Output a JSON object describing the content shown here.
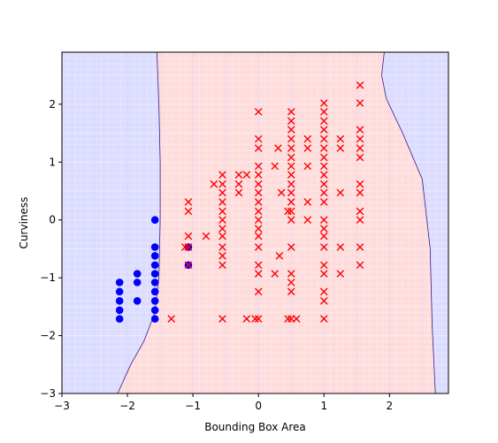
{
  "chart_data": {
    "type": "scatter",
    "title": "",
    "xlabel": "Bounding Box Area",
    "ylabel": "Curviness",
    "xlim": [
      -3,
      2.9
    ],
    "ylim": [
      -3,
      2.9
    ],
    "x_ticks": [
      -3,
      -2,
      -1,
      0,
      1,
      2
    ],
    "y_ticks": [
      -3,
      -2,
      -1,
      0,
      1,
      2
    ],
    "x_tick_labels": [
      "−3",
      "−2",
      "−1",
      "0",
      "1",
      "2"
    ],
    "y_tick_labels": [
      "−3",
      "−2",
      "−1",
      "0",
      "1",
      "2"
    ],
    "grid": false,
    "background": "decision regions (blue = class 0, red = class 1) with mesh grid lines",
    "colors": {
      "class0_region": "#dcdcff",
      "class1_region": "#ffdcdc",
      "class0_marker": "#0000ff",
      "class1_marker": "#ff0000",
      "boundary": "#3a1d8a"
    },
    "decision_boundary": {
      "left": [
        [
          -1.55,
          2.9
        ],
        [
          -1.52,
          2.0
        ],
        [
          -1.5,
          1.0
        ],
        [
          -1.5,
          0.0
        ],
        [
          -1.52,
          -1.0
        ],
        [
          -1.58,
          -1.6
        ],
        [
          -1.75,
          -2.1
        ],
        [
          -1.95,
          -2.5
        ],
        [
          -2.15,
          -3.0
        ]
      ],
      "right": [
        [
          1.92,
          2.9
        ],
        [
          1.88,
          2.5
        ],
        [
          1.95,
          2.1
        ],
        [
          2.2,
          1.5
        ],
        [
          2.5,
          0.7
        ],
        [
          2.62,
          -0.5
        ],
        [
          2.65,
          -1.8
        ],
        [
          2.7,
          -3.0
        ]
      ]
    },
    "series": [
      {
        "marker": "o",
        "color": "#0000ff",
        "points": [
          [
            -2.12,
            -1.08
          ],
          [
            -2.12,
            -1.24
          ],
          [
            -2.12,
            -1.4
          ],
          [
            -2.12,
            -1.56
          ],
          [
            -2.12,
            -1.71
          ],
          [
            -1.85,
            -0.93
          ],
          [
            -1.85,
            -1.08
          ],
          [
            -1.85,
            -1.4
          ],
          [
            -1.58,
            0.0
          ],
          [
            -1.58,
            -0.47
          ],
          [
            -1.58,
            -0.62
          ],
          [
            -1.58,
            -0.78
          ],
          [
            -1.58,
            -0.93
          ],
          [
            -1.58,
            -1.08
          ],
          [
            -1.58,
            -1.24
          ],
          [
            -1.58,
            -1.4
          ],
          [
            -1.58,
            -1.56
          ],
          [
            -1.58,
            -1.71
          ],
          [
            -1.07,
            -0.47
          ],
          [
            -1.07,
            -0.78
          ]
        ]
      },
      {
        "marker": "x",
        "color": "#ff0000",
        "points": [
          [
            -1.33,
            -1.71
          ],
          [
            -1.12,
            -0.47
          ],
          [
            -1.07,
            0.31
          ],
          [
            -1.07,
            0.15
          ],
          [
            -1.07,
            -0.28
          ],
          [
            -1.07,
            -0.47
          ],
          [
            -1.07,
            -0.78
          ],
          [
            -0.8,
            -0.28
          ],
          [
            -0.68,
            0.62
          ],
          [
            -0.55,
            0.78
          ],
          [
            -0.55,
            0.62
          ],
          [
            -0.55,
            0.47
          ],
          [
            -0.55,
            0.31
          ],
          [
            -0.55,
            0.15
          ],
          [
            -0.55,
            0.0
          ],
          [
            -0.55,
            -0.15
          ],
          [
            -0.55,
            -0.28
          ],
          [
            -0.55,
            -0.47
          ],
          [
            -0.55,
            -0.62
          ],
          [
            -0.55,
            -0.78
          ],
          [
            -0.55,
            -1.71
          ],
          [
            -0.3,
            0.78
          ],
          [
            -0.3,
            0.62
          ],
          [
            -0.3,
            0.47
          ],
          [
            -0.18,
            0.78
          ],
          [
            -0.18,
            -1.71
          ],
          [
            0.0,
            1.87
          ],
          [
            0.0,
            1.4
          ],
          [
            0.0,
            1.24
          ],
          [
            0.0,
            0.93
          ],
          [
            0.0,
            0.78
          ],
          [
            0.0,
            0.62
          ],
          [
            0.0,
            0.47
          ],
          [
            0.0,
            0.31
          ],
          [
            0.0,
            0.15
          ],
          [
            0.0,
            0.0
          ],
          [
            0.0,
            -0.15
          ],
          [
            0.0,
            -0.28
          ],
          [
            0.0,
            -0.47
          ],
          [
            0.0,
            -0.78
          ],
          [
            0.0,
            -0.93
          ],
          [
            0.0,
            -1.24
          ],
          [
            0.0,
            -1.71
          ],
          [
            -0.05,
            -1.71
          ],
          [
            0.25,
            0.93
          ],
          [
            0.25,
            -0.93
          ],
          [
            0.3,
            1.24
          ],
          [
            0.35,
            0.47
          ],
          [
            0.32,
            -0.62
          ],
          [
            0.5,
            1.87
          ],
          [
            0.5,
            1.71
          ],
          [
            0.5,
            1.56
          ],
          [
            0.5,
            1.4
          ],
          [
            0.5,
            1.24
          ],
          [
            0.5,
            1.08
          ],
          [
            0.5,
            0.93
          ],
          [
            0.5,
            0.78
          ],
          [
            0.5,
            0.62
          ],
          [
            0.5,
            0.47
          ],
          [
            0.5,
            0.31
          ],
          [
            0.5,
            0.15
          ],
          [
            0.5,
            0.0
          ],
          [
            0.5,
            -0.47
          ],
          [
            0.5,
            -0.93
          ],
          [
            0.5,
            -1.08
          ],
          [
            0.5,
            -1.24
          ],
          [
            0.5,
            -1.71
          ],
          [
            0.45,
            0.15
          ],
          [
            0.45,
            -1.71
          ],
          [
            0.58,
            -1.71
          ],
          [
            0.75,
            1.4
          ],
          [
            0.75,
            1.24
          ],
          [
            0.75,
            0.93
          ],
          [
            0.75,
            0.31
          ],
          [
            0.75,
            0.0
          ],
          [
            1.0,
            2.02
          ],
          [
            1.0,
            1.87
          ],
          [
            1.0,
            1.71
          ],
          [
            1.0,
            1.56
          ],
          [
            1.0,
            1.4
          ],
          [
            1.0,
            1.24
          ],
          [
            1.0,
            1.08
          ],
          [
            1.0,
            0.93
          ],
          [
            1.0,
            0.78
          ],
          [
            1.0,
            0.62
          ],
          [
            1.0,
            0.47
          ],
          [
            1.0,
            0.31
          ],
          [
            1.0,
            0.0
          ],
          [
            1.0,
            -0.15
          ],
          [
            1.0,
            -0.28
          ],
          [
            1.0,
            -0.47
          ],
          [
            1.0,
            -0.78
          ],
          [
            1.0,
            -0.93
          ],
          [
            1.0,
            -1.24
          ],
          [
            1.0,
            -1.4
          ],
          [
            1.0,
            -1.71
          ],
          [
            1.25,
            1.4
          ],
          [
            1.25,
            1.24
          ],
          [
            1.25,
            0.47
          ],
          [
            1.25,
            -0.47
          ],
          [
            1.25,
            -0.93
          ],
          [
            1.55,
            2.33
          ],
          [
            1.55,
            2.02
          ],
          [
            1.55,
            1.56
          ],
          [
            1.55,
            1.4
          ],
          [
            1.55,
            1.24
          ],
          [
            1.55,
            1.08
          ],
          [
            1.55,
            0.62
          ],
          [
            1.55,
            0.47
          ],
          [
            1.55,
            0.15
          ],
          [
            1.55,
            0.0
          ],
          [
            1.55,
            -0.47
          ],
          [
            1.55,
            -0.78
          ]
        ]
      }
    ]
  }
}
